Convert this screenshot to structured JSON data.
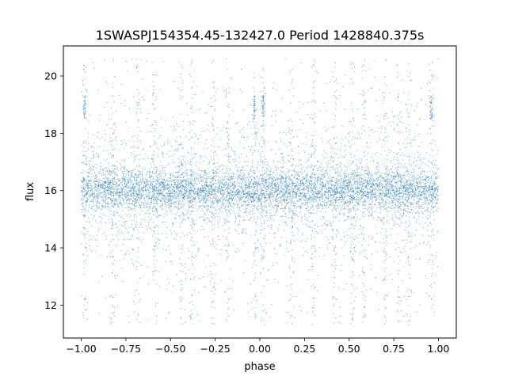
{
  "chart_data": {
    "type": "scatter",
    "title": "1SWASPJ154354.45-132427.0 Period 1428840.375s",
    "xlabel": "phase",
    "ylabel": "flux",
    "xlim": [
      -1.1,
      1.1
    ],
    "ylim": [
      10.85,
      21.05
    ],
    "x_ticks": [
      -1.0,
      -0.75,
      -0.5,
      -0.25,
      0.0,
      0.25,
      0.5,
      0.75,
      1.0
    ],
    "x_tick_labels": [
      "−1.00",
      "−0.75",
      "−0.50",
      "−0.25",
      "0.00",
      "0.25",
      "0.50",
      "0.75",
      "1.00"
    ],
    "y_ticks": [
      12,
      14,
      16,
      18,
      20
    ],
    "y_tick_labels": [
      "12",
      "14",
      "16",
      "18",
      "20"
    ],
    "grid": false,
    "legend": "none",
    "marker_color": "#1f77b4",
    "phase_range": [
      -1.0,
      1.0
    ],
    "flux_center": 16.0,
    "flux_core_spread": 0.35,
    "flux_min": 11.3,
    "flux_max": 20.6,
    "bright_clumps": [
      {
        "phase": -0.98,
        "flux_range": [
          18.5,
          19.3
        ]
      },
      {
        "phase": -0.03,
        "flux_range": [
          18.5,
          19.3
        ]
      },
      {
        "phase": 0.02,
        "flux_range": [
          18.5,
          19.3
        ]
      },
      {
        "phase": 0.96,
        "flux_range": [
          18.5,
          19.3
        ]
      }
    ],
    "spike_phases": [
      -0.98,
      -0.82,
      -0.68,
      -0.59,
      -0.44,
      -0.38,
      -0.26,
      -0.18,
      -0.03,
      0.02,
      0.18,
      0.3,
      0.42,
      0.52,
      0.58,
      0.7,
      0.78,
      0.83,
      0.96
    ]
  }
}
